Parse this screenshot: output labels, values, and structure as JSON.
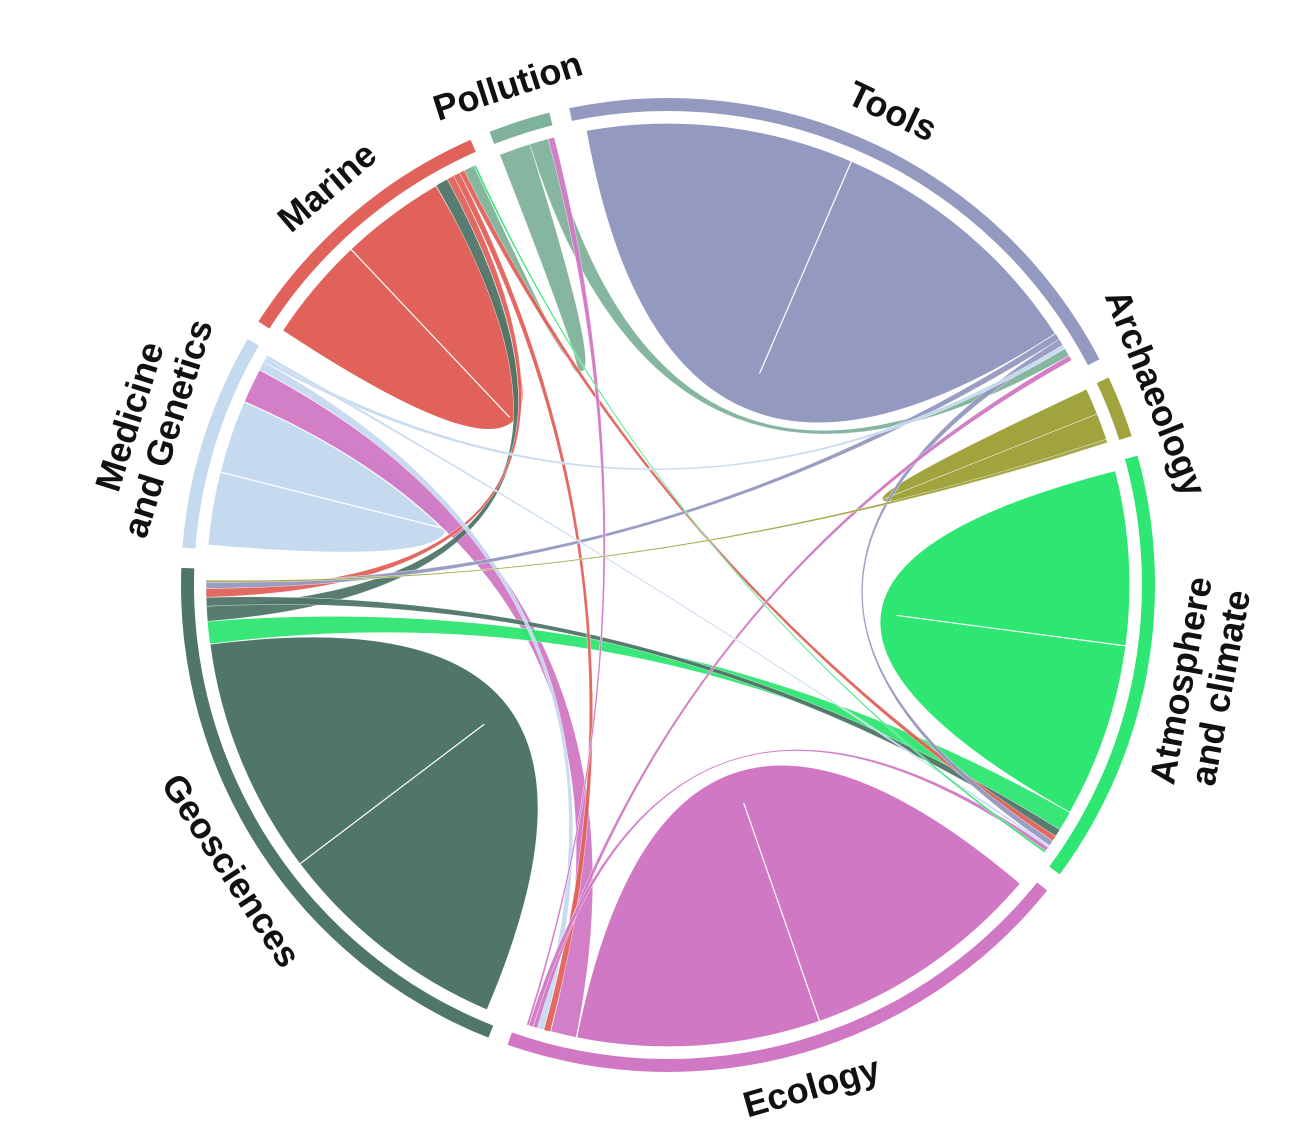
{
  "chart_data": {
    "type": "chord",
    "title": "",
    "groups": [
      {
        "id": "marine",
        "label": [
          "Marine"
        ],
        "color": "#e0625a",
        "size": 9
      },
      {
        "id": "pollution",
        "label": [
          "Pollution"
        ],
        "color": "#7fb29a",
        "size": 2
      },
      {
        "id": "tools",
        "label": [
          "Tools"
        ],
        "color": "#9399bf",
        "size": 20
      },
      {
        "id": "archaeology",
        "label": [
          "Archaeology"
        ],
        "color": "#a0a33e",
        "size": 2
      },
      {
        "id": "atmosphere",
        "label": [
          "Atmosphere",
          "and climate"
        ],
        "color": "#2ee672",
        "size": 14
      },
      {
        "id": "ecology",
        "label": [
          "Ecology"
        ],
        "color": "#d178c4",
        "size": 19
      },
      {
        "id": "geosciences",
        "label": [
          "Geosciences"
        ],
        "color": "#4f7668",
        "size": 19
      },
      {
        "id": "medicine",
        "label": [
          "Medicine",
          "and Genetics"
        ],
        "color": "#c5d9ef",
        "size": 7
      }
    ],
    "flows": [
      {
        "source": "marine",
        "target": "marine",
        "value": 5.0
      },
      {
        "source": "tools",
        "target": "tools",
        "value": 10.0
      },
      {
        "source": "geosciences",
        "target": "geosciences",
        "value": 9.5
      },
      {
        "source": "ecology",
        "target": "ecology",
        "value": 11.0
      },
      {
        "source": "atmosphere",
        "target": "atmosphere",
        "value": 8.0
      },
      {
        "source": "medicine",
        "target": "medicine",
        "value": 2.5
      },
      {
        "source": "ecology",
        "target": "medicine",
        "value": 1.2
      },
      {
        "source": "atmosphere",
        "target": "geosciences",
        "value": 0.9
      },
      {
        "source": "geosciences",
        "target": "marine",
        "value": 0.6
      },
      {
        "source": "geosciences",
        "target": "atmosphere",
        "value": 0.35
      },
      {
        "source": "marine",
        "target": "geosciences",
        "value": 0.35
      },
      {
        "source": "marine",
        "target": "ecology",
        "value": 0.3
      },
      {
        "source": "marine",
        "target": "atmosphere",
        "value": 0.25
      },
      {
        "source": "tools",
        "target": "geosciences",
        "value": 0.25
      },
      {
        "source": "tools",
        "target": "atmosphere",
        "value": 0.25
      },
      {
        "source": "medicine",
        "target": "ecology",
        "value": 0.3
      },
      {
        "source": "medicine",
        "target": "tools",
        "value": 0.15
      },
      {
        "source": "medicine",
        "target": "atmosphere",
        "value": 0.1
      },
      {
        "source": "pollution",
        "target": "marine",
        "value": 0.5
      },
      {
        "source": "pollution",
        "target": "tools",
        "value": 0.3
      },
      {
        "source": "ecology",
        "target": "tools",
        "value": 0.2
      },
      {
        "source": "ecology",
        "target": "atmosphere",
        "value": 0.2
      },
      {
        "source": "ecology",
        "target": "pollution",
        "value": 0.1
      },
      {
        "source": "archaeology",
        "target": "archaeology",
        "value": 0.6
      },
      {
        "source": "archaeology",
        "target": "geosciences",
        "value": 0.08
      },
      {
        "source": "atmosphere",
        "target": "marine",
        "value": 0.1
      }
    ]
  }
}
